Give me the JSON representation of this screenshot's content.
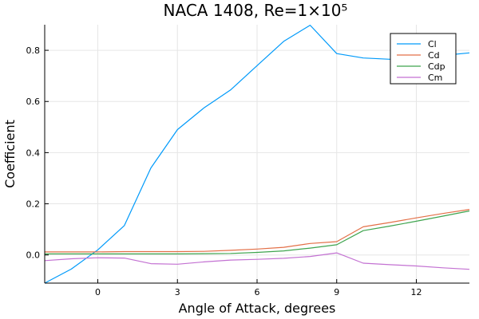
{
  "chart_data": {
    "type": "line",
    "title": "NACA 1408, Re=1×10⁵",
    "xlabel": "Angle of Attack, degrees",
    "ylabel": "Coefficient",
    "xlim": [
      -2,
      14
    ],
    "ylim": [
      -0.11,
      0.9
    ],
    "xticks": [
      0,
      3,
      6,
      9,
      12
    ],
    "xtick_labels": [
      "0",
      "3",
      "6",
      "9",
      "12"
    ],
    "yticks": [
      0.0,
      0.2,
      0.4,
      0.6,
      0.8
    ],
    "ytick_labels": [
      "0.0",
      "0.2",
      "0.4",
      "0.6",
      "0.8"
    ],
    "grid": true,
    "legend_position": "top-right",
    "x": [
      -2,
      -1,
      0,
      1,
      2,
      3,
      4,
      5,
      6,
      7,
      8,
      9,
      10,
      11,
      12,
      13,
      14
    ],
    "series": [
      {
        "name": "Cl",
        "color": "#009AFA",
        "values": [
          -0.11,
          -0.055,
          0.02,
          0.115,
          0.34,
          0.49,
          0.575,
          0.645,
          0.74,
          0.835,
          0.898,
          0.787,
          0.77,
          0.765,
          0.77,
          0.78,
          0.79
        ]
      },
      {
        "name": "Cd",
        "color": "#E36F47",
        "values": [
          0.012,
          0.012,
          0.012,
          0.013,
          0.013,
          0.013,
          0.014,
          0.018,
          0.023,
          0.03,
          0.045,
          0.052,
          0.11,
          0.127,
          0.145,
          0.162,
          0.178
        ]
      },
      {
        "name": "Cdp",
        "color": "#3EA44E",
        "values": [
          0.004,
          0.004,
          0.004,
          0.004,
          0.004,
          0.004,
          0.005,
          0.006,
          0.01,
          0.016,
          0.027,
          0.04,
          0.095,
          0.113,
          0.132,
          0.152,
          0.172
        ]
      },
      {
        "name": "Cm",
        "color": "#C371D2",
        "values": [
          -0.022,
          -0.015,
          -0.011,
          -0.012,
          -0.034,
          -0.036,
          -0.027,
          -0.02,
          -0.017,
          -0.013,
          -0.006,
          0.008,
          -0.032,
          -0.038,
          -0.043,
          -0.05,
          -0.056
        ]
      }
    ]
  }
}
